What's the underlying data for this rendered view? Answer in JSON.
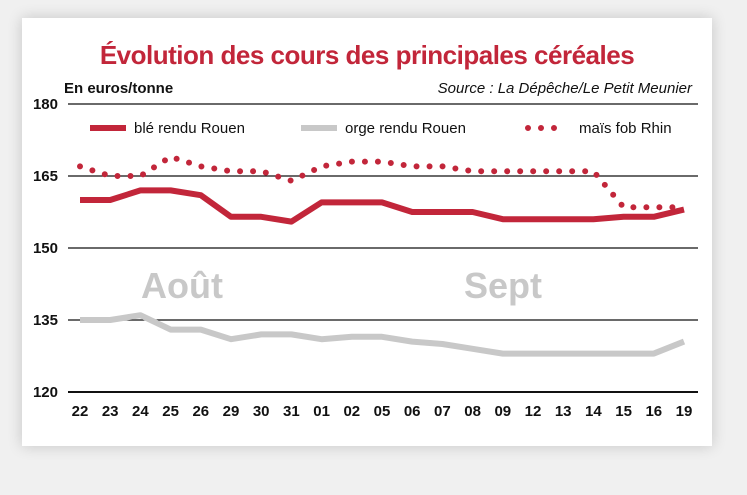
{
  "chart_data": {
    "type": "line",
    "title": "Évolution des cours des principales céréales",
    "ylabel": "En euros/tonne",
    "source": "Source : La Dépêche/Le Petit Meunier",
    "ylim": [
      120,
      180
    ],
    "yticks": [
      120,
      135,
      150,
      165,
      180
    ],
    "grid": true,
    "legend_position": "top",
    "categories": [
      "22",
      "23",
      "24",
      "25",
      "26",
      "29",
      "30",
      "31",
      "01",
      "02",
      "05",
      "06",
      "07",
      "08",
      "09",
      "12",
      "13",
      "14",
      "15",
      "16",
      "19"
    ],
    "month_labels": [
      "Août",
      "Sept"
    ],
    "series": [
      {
        "name": "blé rendu Rouen",
        "color": "#c2263a",
        "style": "solid",
        "values": [
          160,
          160,
          162,
          162,
          161,
          156.5,
          156.5,
          155.5,
          159.5,
          159.5,
          159.5,
          157.5,
          157.5,
          157.5,
          156,
          156,
          156,
          156,
          156.5,
          156.5,
          158
        ]
      },
      {
        "name": "orge rendu Rouen",
        "color": "#c8c8c8",
        "style": "solid",
        "values": [
          135,
          135,
          136,
          133,
          133,
          131,
          132,
          132,
          131,
          131.5,
          131.5,
          130.5,
          130,
          129,
          128,
          128,
          128,
          128,
          128,
          128,
          130.5
        ]
      },
      {
        "name": "maïs fob Rhin",
        "color": "#c2263a",
        "style": "dotted",
        "values": [
          167,
          165,
          165,
          169,
          167,
          166,
          166,
          164,
          167,
          168,
          168,
          167,
          167,
          166,
          166,
          166,
          166,
          166,
          158.5,
          158.5,
          158.5
        ]
      }
    ]
  }
}
